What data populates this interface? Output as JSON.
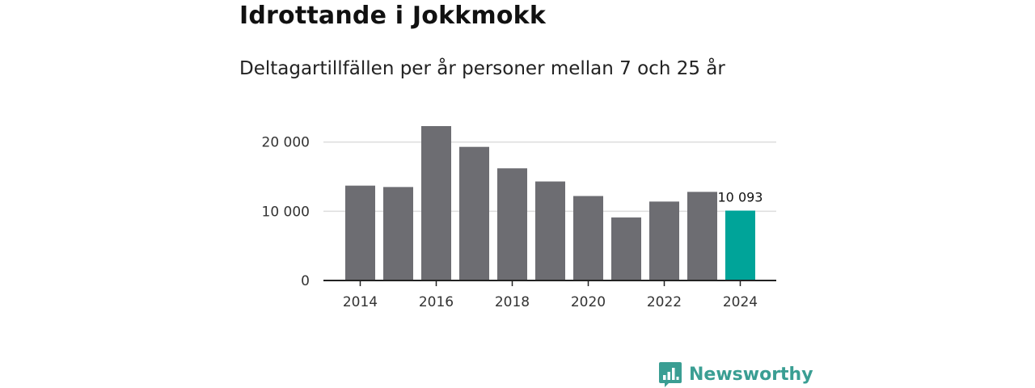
{
  "title": "Idrottande i Jokkmokk",
  "subtitle": "Deltagartillfällen per år personer mellan 7 och 25 år",
  "brand": {
    "name": "Newsworthy",
    "color": "#3a9e93",
    "icon": "bar-chart-bubble-icon"
  },
  "colors": {
    "bar": "#6d6d72",
    "highlight": "#00a499",
    "grid": "#dddddd",
    "axis": "#222222"
  },
  "chart_data": {
    "type": "bar",
    "title": "Idrottande i Jokkmokk",
    "subtitle": "Deltagartillfällen per år personer mellan 7 och 25 år",
    "xlabel": "",
    "ylabel": "",
    "categories": [
      "2014",
      "2015",
      "2016",
      "2017",
      "2018",
      "2019",
      "2020",
      "2021",
      "2022",
      "2023",
      "2024"
    ],
    "values": [
      13700,
      13500,
      22300,
      19300,
      16200,
      14300,
      12200,
      9100,
      11400,
      12800,
      10093
    ],
    "highlight_index": 10,
    "highlight_label": "10 093",
    "ylim": [
      0,
      23000
    ],
    "yticks": [
      0,
      10000,
      20000
    ],
    "ytick_labels": [
      "0",
      "10 000",
      "20 000"
    ],
    "xtick_labels": [
      "2014",
      "2016",
      "2018",
      "2020",
      "2022",
      "2024"
    ],
    "grid": true,
    "legend": "none"
  }
}
